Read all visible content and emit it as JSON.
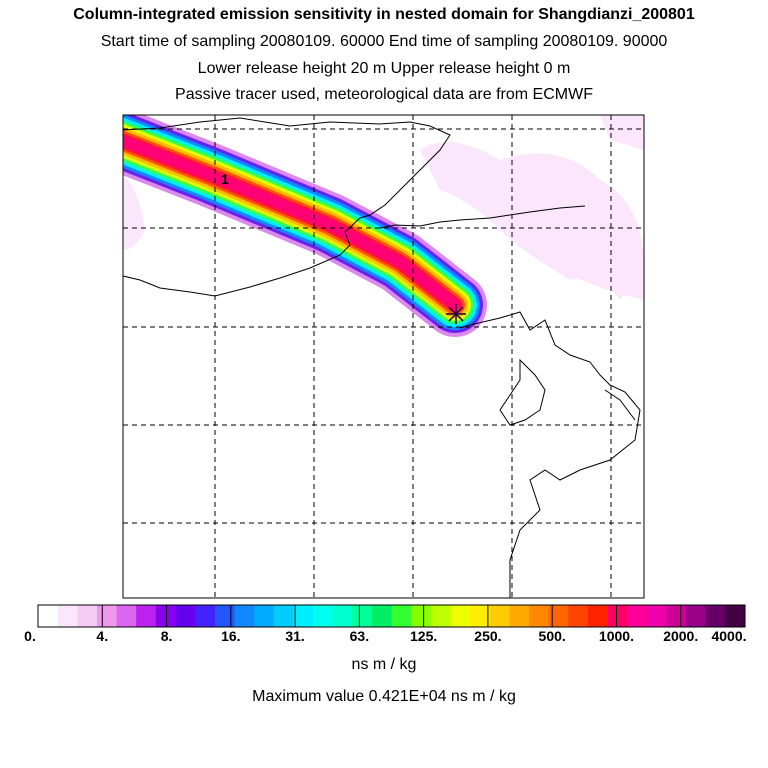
{
  "header": {
    "title": "Column-integrated emission sensitivity in nested domain for Shangdianzi_200801",
    "line1": "Start time of sampling 20080109. 60000     End time of sampling 20080109. 90000",
    "line2": "Lower release height   20 m          Upper release height    0 m",
    "line3": "Passive tracer used, meteorological data are from ECMWF"
  },
  "chart_data": {
    "type": "heatmap",
    "title": "Column-integrated emission sensitivity in nested domain for Shangdianzi_200801",
    "plume_direction": "from northwest toward receptor at center-right",
    "contour_label": "1",
    "receptor_marker": "star",
    "colorbar": {
      "tick_labels": [
        "0.",
        "4.",
        "8.",
        "16.",
        "31.",
        "63.",
        "125.",
        "250.",
        "500.",
        "1000.",
        "2000.",
        "4000."
      ],
      "colors": [
        "#ffffff",
        "#fbe6fb",
        "#f5ccf5",
        "#ee99ee",
        "#dd66ee",
        "#bb22ee",
        "#8800ee",
        "#6600ee",
        "#4422ff",
        "#2255ff",
        "#1188ff",
        "#00aaff",
        "#00ccff",
        "#00eeff",
        "#00ffee",
        "#00ffcc",
        "#00ff99",
        "#00ee66",
        "#33ff33",
        "#88ff00",
        "#bbff00",
        "#eeff00",
        "#ffee00",
        "#ffcc00",
        "#ffaa00",
        "#ff8800",
        "#ff6600",
        "#ff4400",
        "#ff2200",
        "#ff0066",
        "#ff0099",
        "#ee00aa",
        "#cc0099",
        "#990088",
        "#660066",
        "#440044"
      ],
      "units": "ns m / kg"
    },
    "max_value_text": "Maximum value  0.421E+04 ns m / kg"
  }
}
